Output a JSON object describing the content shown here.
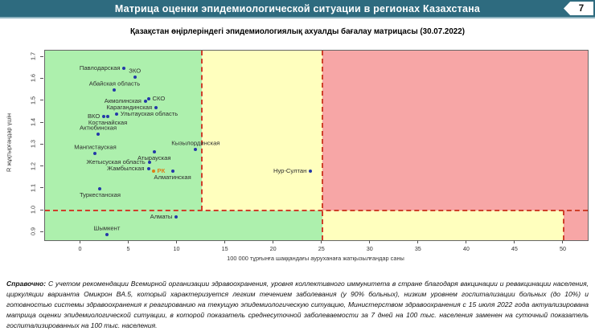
{
  "header": {
    "title": "Матрица оценки эпидемиологической ситуации в регионах Казахстана",
    "page_number": "7"
  },
  "footnote": {
    "label": "Справочно:",
    "text": "С учетом рекомендации Всемирной организации здравоохранения, уровня коллективного иммунитета в стране благодаря вакцинации и ревакцинации населения, циркуляции варианта Омикрон BA.5, который характеризуется легким течением заболевания (у 90% больных), низким уровнем госпитализации больных (до 10%) и готовностью системы здравоохранения к реагированию на текущую эпидемиологическую ситуацию, Министерством здравоохранения с 15 июля 2022 года актуализирована матрица оценки эпидемиологической ситуации, в которой показатель  среднесуточной заболеваемости за 7 дней на 100 тыс. населения заменен на  суточный показатель госпитализированных на 100 тыс. населения."
  },
  "colors": {
    "header_bg": "#2e6b7f",
    "header_text": "#ffffff",
    "zone_green": "#adf0ad",
    "zone_yellow": "#ffffbe",
    "zone_red": "#f7a6a6",
    "threshold": "#cf3f2a",
    "point": "#2438a8",
    "point_highlight": "#de7d15",
    "axis": "#555555",
    "tick_text": "#333333"
  },
  "chart_data": {
    "type": "scatter",
    "title": "Қазақстан өңірлеріндегі эпидемиологиялық ахуалды бағалау матрицасы  (30.07.2022)",
    "xlabel": "100 000 тұрғынға шаққандағы ауруханаға жатқызылғандар саны",
    "ylabel": "R жұқтырғандар үшін",
    "xlim": [
      -3.7,
      52.5
    ],
    "ylim": [
      0.865,
      1.73
    ],
    "x_ticks": [
      0,
      5,
      10,
      15,
      20,
      25,
      30,
      35,
      40,
      45,
      50
    ],
    "y_ticks": [
      0.9,
      1.0,
      1.1,
      1.2,
      1.3,
      1.4,
      1.5,
      1.6,
      1.7
    ],
    "grid": false,
    "legend": null,
    "zones": [
      {
        "x1": -3.7,
        "x2": 12.5,
        "y1": 1.0,
        "y2": 1.73,
        "color": "green"
      },
      {
        "x1": 12.5,
        "x2": 25,
        "y1": 1.0,
        "y2": 1.73,
        "color": "yellow"
      },
      {
        "x1": 25,
        "x2": 52.5,
        "y1": 1.0,
        "y2": 1.73,
        "color": "red"
      },
      {
        "x1": -3.7,
        "x2": 25,
        "y1": 0.865,
        "y2": 1.0,
        "color": "green"
      },
      {
        "x1": 25,
        "x2": 50,
        "y1": 0.865,
        "y2": 1.0,
        "color": "yellow"
      },
      {
        "x1": 50,
        "x2": 52.5,
        "y1": 0.865,
        "y2": 1.0,
        "color": "red"
      }
    ],
    "threshold_lines": [
      {
        "type": "h",
        "y": 1.0,
        "x1": -3.7,
        "x2": 52.5
      },
      {
        "type": "v",
        "x": 12.5,
        "y1": 1.0,
        "y2": 1.73
      },
      {
        "type": "v",
        "x": 25,
        "y1": 0.865,
        "y2": 1.73
      },
      {
        "type": "v",
        "x": 50,
        "y1": 0.865,
        "y2": 1.0
      }
    ],
    "points": [
      {
        "label": "Павлодарская",
        "x": 4.5,
        "y": 1.65,
        "pos": "left"
      },
      {
        "label": "ЗКО",
        "x": 5.6,
        "y": 1.61,
        "pos": "above"
      },
      {
        "label": "Абайская область",
        "x": 3.5,
        "y": 1.55,
        "pos": "above"
      },
      {
        "label": "Акмолинская",
        "x": 6.7,
        "y": 1.5,
        "pos": "left"
      },
      {
        "label": "СКО",
        "x": 7.0,
        "y": 1.51,
        "pos": "right"
      },
      {
        "label": "Карагандинская",
        "x": 7.8,
        "y": 1.47,
        "pos": "left"
      },
      {
        "label": "Улытауская область",
        "x": 3.7,
        "y": 1.44,
        "pos": "right"
      },
      {
        "label": "ВКО",
        "x": 2.4,
        "y": 1.43,
        "pos": "left"
      },
      {
        "label": "Костанайская",
        "x": 2.8,
        "y": 1.43,
        "pos": "below"
      },
      {
        "label": "Актюбинская",
        "x": 1.8,
        "y": 1.35,
        "pos": "above"
      },
      {
        "label": "Мангистауская",
        "x": 1.5,
        "y": 1.26,
        "pos": "above"
      },
      {
        "label": "Кызылординская",
        "x": 11.9,
        "y": 1.28,
        "pos": "above"
      },
      {
        "label": "Атырауская",
        "x": 7.6,
        "y": 1.27,
        "pos": "below"
      },
      {
        "label": "Жетысуская область",
        "x": 7.1,
        "y": 1.22,
        "pos": "left"
      },
      {
        "label": "Жамбылская",
        "x": 7.0,
        "y": 1.19,
        "pos": "left"
      },
      {
        "label": "РК",
        "x": 7.5,
        "y": 1.18,
        "pos": "right",
        "highlight": true
      },
      {
        "label": "Алматинская",
        "x": 9.5,
        "y": 1.18,
        "pos": "below"
      },
      {
        "label": "Нур-Султан",
        "x": 23.8,
        "y": 1.18,
        "pos": "left"
      },
      {
        "label": "Туркестанская",
        "x": 2.0,
        "y": 1.1,
        "pos": "below"
      },
      {
        "label": "Алматы",
        "x": 9.9,
        "y": 0.97,
        "pos": "left"
      },
      {
        "label": "Шымкент",
        "x": 2.7,
        "y": 0.89,
        "pos": "above"
      }
    ]
  }
}
